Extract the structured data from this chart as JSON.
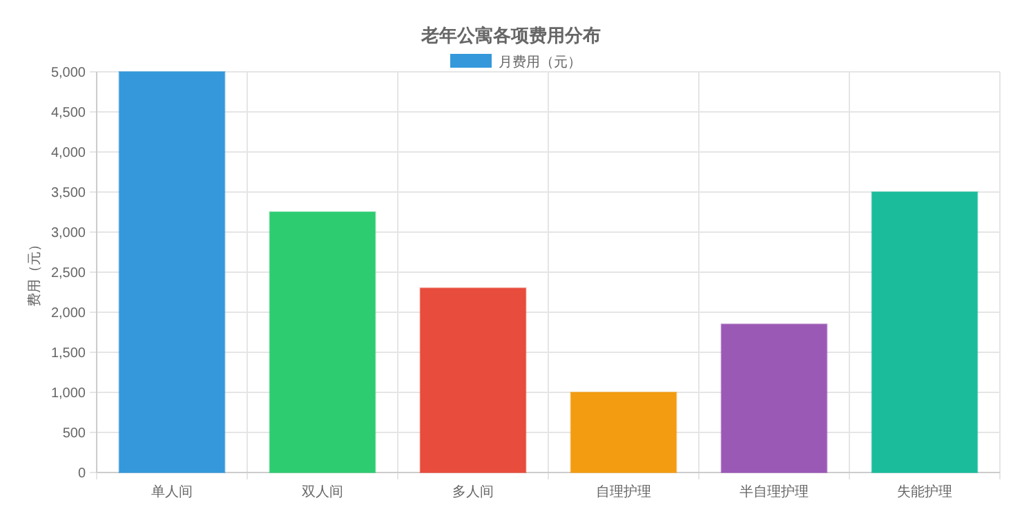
{
  "chart_data": {
    "type": "bar",
    "title": "老年公寓各项费用分布",
    "ylabel": "费用（元）",
    "categories": [
      "单人间",
      "双人间",
      "多人间",
      "自理护理",
      "半自理护理",
      "失能护理"
    ],
    "series": [
      {
        "name": "月费用（元）",
        "colors": [
          "#3498db",
          "#2ecc71",
          "#e74c3c",
          "#f39c12",
          "#9b59b6",
          "#1abc9c"
        ],
        "values": [
          5000,
          3250,
          2300,
          1000,
          1850,
          3500
        ]
      }
    ],
    "ylim": [
      0,
      5000
    ],
    "yticks": [
      {
        "value": 0,
        "label": "0"
      },
      {
        "value": 500,
        "label": "500"
      },
      {
        "value": 1000,
        "label": "1,000"
      },
      {
        "value": 1500,
        "label": "1,500"
      },
      {
        "value": 2000,
        "label": "2,000"
      },
      {
        "value": 2500,
        "label": "2,500"
      },
      {
        "value": 3000,
        "label": "3,000"
      },
      {
        "value": 3500,
        "label": "3,500"
      },
      {
        "value": 4000,
        "label": "4,000"
      },
      {
        "value": 4500,
        "label": "4,500"
      },
      {
        "value": 5000,
        "label": "5,000"
      }
    ],
    "grid": true,
    "legend": "top"
  }
}
